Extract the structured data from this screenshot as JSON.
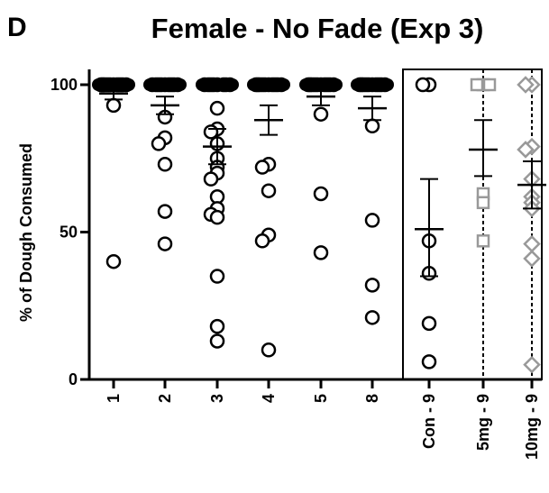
{
  "chart_data": {
    "type": "scatter",
    "panel_letter": "D",
    "title": "Female - No Fade (Exp 3)",
    "ylabel": "% of Dough Consumed",
    "xlabel": "",
    "ylim": [
      0,
      100
    ],
    "yticks": [
      0,
      50,
      100
    ],
    "grid": false,
    "categories": [
      "1",
      "2",
      "3",
      "4",
      "5",
      "8",
      "Con - 9",
      "5mg - 9",
      "10mg - 9"
    ],
    "colors": {
      "black": "#000000",
      "gray": "#999999"
    },
    "groups": [
      {
        "label": "1",
        "marker": "circle",
        "color": "#000000",
        "mean": 97,
        "sem_low": 95,
        "sem_high": 99,
        "points": [
          100,
          100,
          100,
          100,
          100,
          100,
          100,
          100,
          100,
          100,
          93,
          40
        ]
      },
      {
        "label": "2",
        "marker": "circle",
        "color": "#000000",
        "mean": 93,
        "sem_low": 90,
        "sem_high": 96,
        "points": [
          100,
          100,
          100,
          100,
          100,
          100,
          100,
          100,
          100,
          89,
          82,
          80,
          73,
          57,
          46
        ]
      },
      {
        "label": "3",
        "marker": "circle",
        "color": "#000000",
        "mean": 79,
        "sem_low": 73,
        "sem_high": 85,
        "points": [
          100,
          100,
          100,
          100,
          100,
          100,
          100,
          100,
          92,
          85,
          84,
          80,
          75,
          72,
          70,
          68,
          62,
          58,
          56,
          55,
          35,
          18,
          13
        ]
      },
      {
        "label": "4",
        "marker": "circle",
        "color": "#000000",
        "mean": 88,
        "sem_low": 83,
        "sem_high": 93,
        "points": [
          100,
          100,
          100,
          100,
          100,
          100,
          100,
          100,
          100,
          100,
          73,
          72,
          64,
          49,
          47,
          10
        ]
      },
      {
        "label": "5",
        "marker": "circle",
        "color": "#000000",
        "mean": 96,
        "sem_low": 93,
        "sem_high": 98,
        "points": [
          100,
          100,
          100,
          100,
          100,
          100,
          100,
          100,
          100,
          100,
          90,
          63,
          43
        ]
      },
      {
        "label": "8",
        "marker": "circle",
        "color": "#000000",
        "mean": 92,
        "sem_low": 88,
        "sem_high": 96,
        "points": [
          100,
          100,
          100,
          100,
          100,
          100,
          100,
          100,
          100,
          100,
          86,
          54,
          32,
          21
        ]
      },
      {
        "label": "Con - 9",
        "marker": "circle",
        "color": "#000000",
        "mean": 51,
        "sem_low": 35,
        "sem_high": 68,
        "points": [
          100,
          100,
          47,
          36,
          19,
          6
        ]
      },
      {
        "label": "5mg - 9",
        "marker": "square",
        "color": "#999999",
        "mean": 78,
        "sem_low": 69,
        "sem_high": 88,
        "points": [
          100,
          100,
          100,
          63,
          60,
          47
        ]
      },
      {
        "label": "10mg - 9",
        "marker": "diamond",
        "color": "#999999",
        "mean": 66,
        "sem_low": 58,
        "sem_high": 74,
        "points": [
          100,
          100,
          79,
          78,
          68,
          62,
          60,
          58,
          46,
          41,
          5
        ]
      }
    ]
  }
}
